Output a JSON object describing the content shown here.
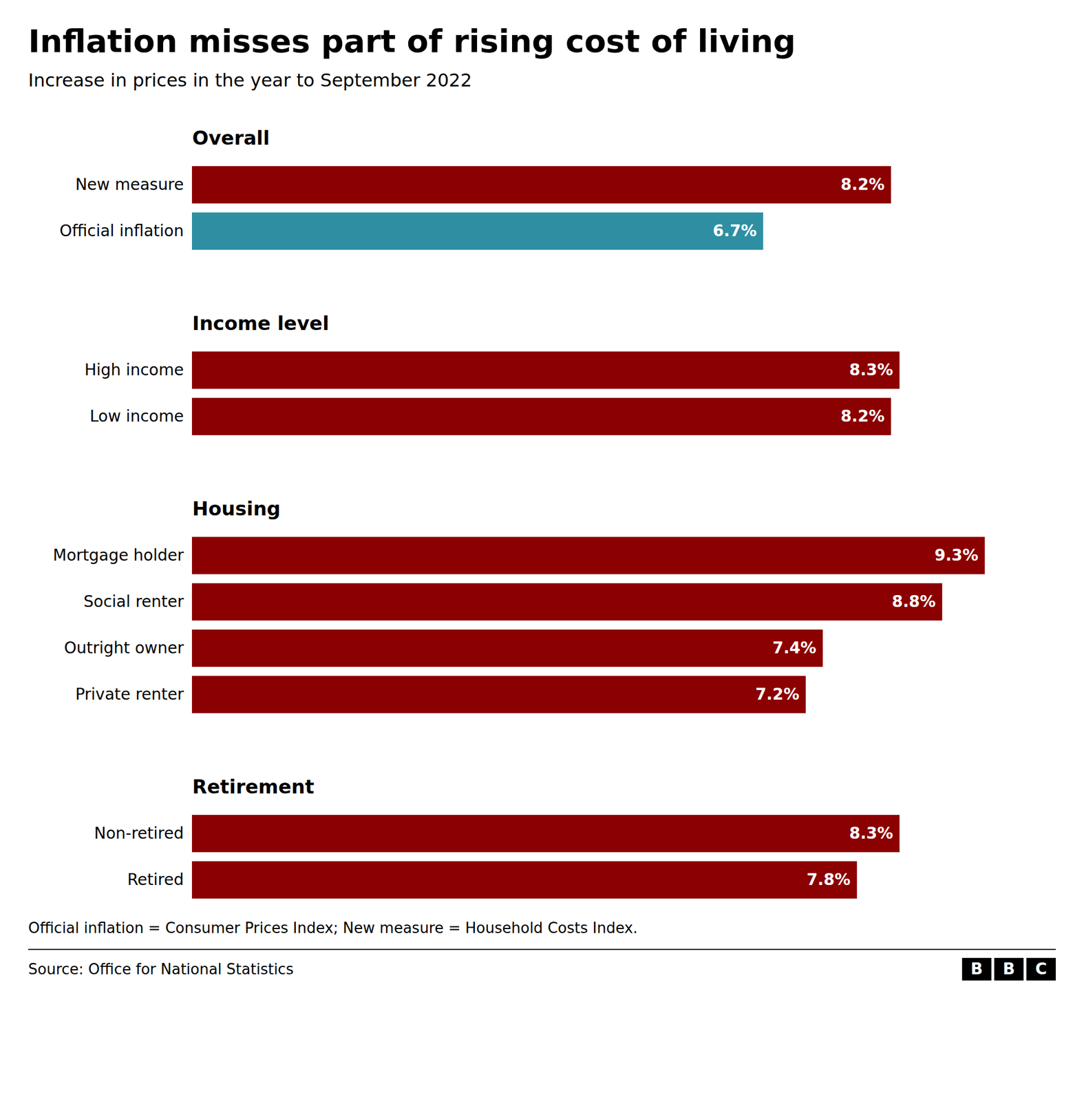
{
  "chart_data": {
    "type": "bar",
    "orientation": "horizontal",
    "title": "Inflation misses part of rising cost of living",
    "subtitle": "Increase in prices in the year to September 2022",
    "footnote": "Official inflation = Consumer Prices Index; New measure = Household Costs Index.",
    "source": "Source: Office for National Statistics",
    "logo": "BBC",
    "groups": [
      "Overall",
      "Overall",
      "Income level",
      "Income level",
      "Housing",
      "Housing",
      "Housing",
      "Housing",
      "Retirement",
      "Retirement"
    ],
    "categories": [
      "New measure",
      "Official inflation",
      "High income",
      "Low income",
      "Mortgage holder",
      "Social renter",
      "Outright owner",
      "Private renter",
      "Non-retired",
      "Retired"
    ],
    "values": [
      8.2,
      6.7,
      8.3,
      8.2,
      9.3,
      8.8,
      7.4,
      7.2,
      8.3,
      7.8
    ],
    "value_labels": [
      "8.2%",
      "6.7%",
      "8.3%",
      "8.2%",
      "9.3%",
      "8.8%",
      "7.4%",
      "7.2%",
      "8.3%",
      "7.8%"
    ],
    "colors": [
      "#8b0000",
      "#2e8fa3",
      "#8b0000",
      "#8b0000",
      "#8b0000",
      "#8b0000",
      "#8b0000",
      "#8b0000",
      "#8b0000",
      "#8b0000"
    ],
    "xlim": [
      0,
      10.0
    ],
    "data_labels": true,
    "tick_labels": "y",
    "grid": false
  }
}
